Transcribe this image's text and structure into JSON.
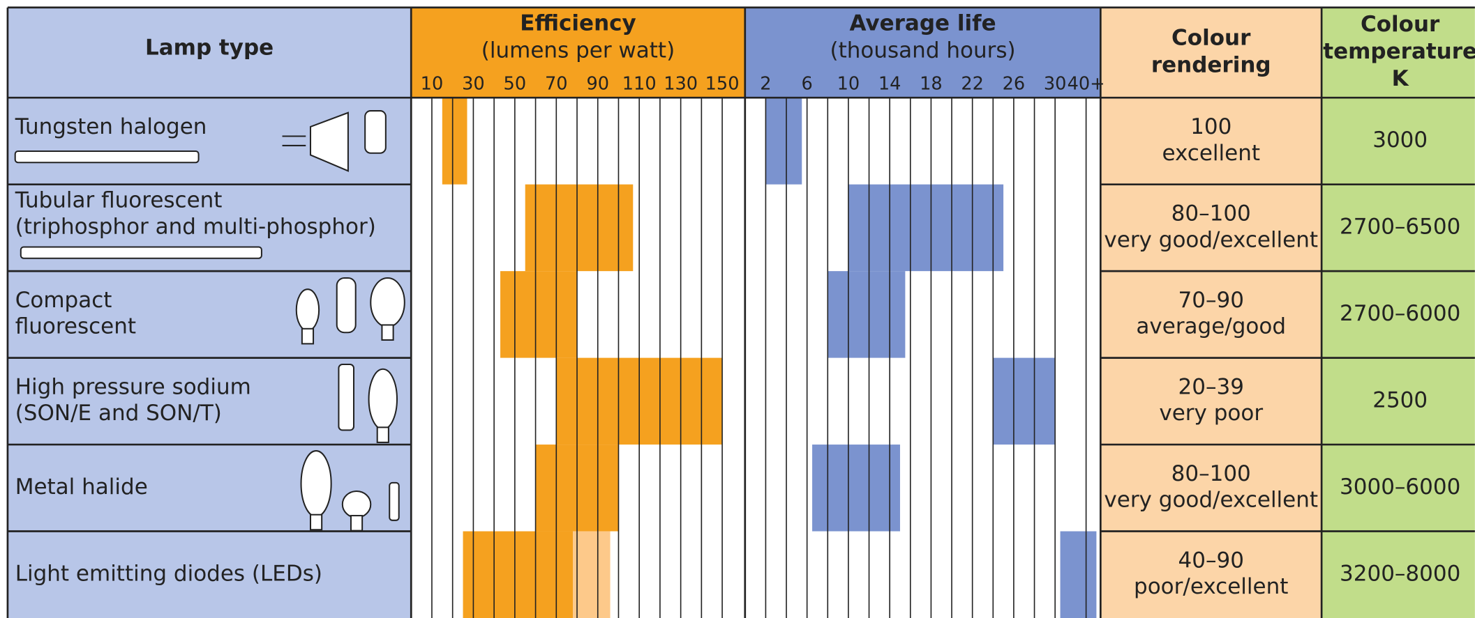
{
  "header": {
    "lamp_type": "Lamp type",
    "efficiency": {
      "title": "Efficiency",
      "subtitle": "(lumens per watt)",
      "xlim": [
        0,
        161
      ],
      "xticks": [
        10,
        30,
        50,
        70,
        90,
        110,
        130,
        150
      ]
    },
    "life": {
      "title": "Average life",
      "subtitle": "(thousand hours)",
      "xlim": [
        0,
        34.4
      ],
      "xticks": [
        2,
        6,
        10,
        14,
        18,
        22,
        26,
        30,
        {
          "value": 33,
          "label": "40+"
        }
      ]
    },
    "colour_rendering": [
      "Colour",
      "rendering"
    ],
    "colour_temperature": [
      "Colour",
      "temperature",
      "K"
    ]
  },
  "bar_colors": {
    "efficiency": "#f5a11f",
    "efficiency_extended": "#fdc98a",
    "life": "#7b93cf"
  },
  "rows": [
    {
      "name": [
        "Tungsten halogen"
      ],
      "efficiency": [
        15,
        27
      ],
      "life": [
        2,
        5.5
      ],
      "colour_rendering": [
        "100",
        "excellent"
      ],
      "colour_temperature": "3000"
    },
    {
      "name": [
        "Tubular fluorescent",
        "(triphosphor and multi-phosphor)"
      ],
      "efficiency": [
        55,
        107
      ],
      "life": [
        10,
        25
      ],
      "colour_rendering": [
        "80–100",
        "very good/excellent"
      ],
      "colour_temperature": "2700–6500"
    },
    {
      "name": [
        "Compact",
        "fluorescent"
      ],
      "efficiency": [
        43,
        80
      ],
      "life": [
        8,
        15.5
      ],
      "colour_rendering": [
        "70–90",
        "average/good"
      ],
      "colour_temperature": "2700–6000"
    },
    {
      "name": [
        "High pressure sodium",
        "(SON/E and SON/T)"
      ],
      "efficiency": [
        70,
        150
      ],
      "life": [
        24,
        30
      ],
      "colour_rendering": [
        "20–39",
        "very poor"
      ],
      "colour_temperature": "2500"
    },
    {
      "name": [
        "Metal halide"
      ],
      "efficiency": [
        60,
        100
      ],
      "life": [
        6.5,
        15
      ],
      "colour_rendering": [
        "80–100",
        "very good/excellent"
      ],
      "colour_temperature": "3000–6000"
    },
    {
      "name": [
        "Light emitting diodes (LEDs)"
      ],
      "efficiency": [
        25,
        78
      ],
      "efficiency_extended": [
        78,
        96
      ],
      "life": [
        30.5,
        34
      ],
      "colour_rendering": [
        "40–90",
        "poor/excellent"
      ],
      "colour_temperature": "3200–8000"
    }
  ]
}
